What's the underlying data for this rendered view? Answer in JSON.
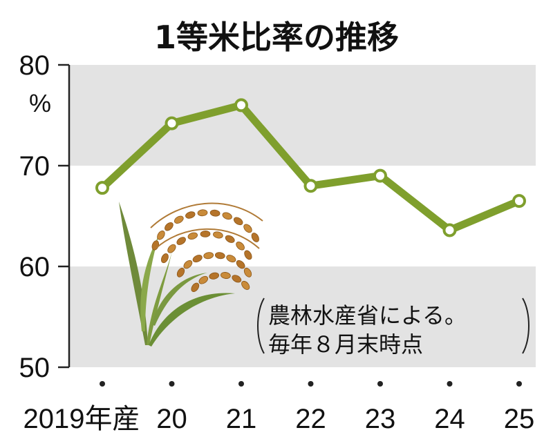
{
  "chart_data": {
    "type": "line",
    "title": "1等米比率の推移",
    "ylabel": "%",
    "ylim": [
      50,
      80
    ],
    "yticks": [
      50,
      60,
      70,
      80
    ],
    "bands": [
      [
        60,
        70
      ],
      [
        50,
        60
      ]
    ],
    "grid": "alternating bands",
    "categories": [
      "2019年産",
      "20",
      "21",
      "22",
      "23",
      "24",
      "25"
    ],
    "series": [
      {
        "values": [
          67.8,
          74.2,
          76.0,
          68.0,
          69.0,
          63.6,
          66.5
        ]
      }
    ],
    "annotation": [
      "農林水産省による。",
      "毎年８月末時点"
    ],
    "colors": {
      "line": "#7f9f2d",
      "band": "#e3e3e3",
      "marker_fill": "#ffffff"
    }
  }
}
